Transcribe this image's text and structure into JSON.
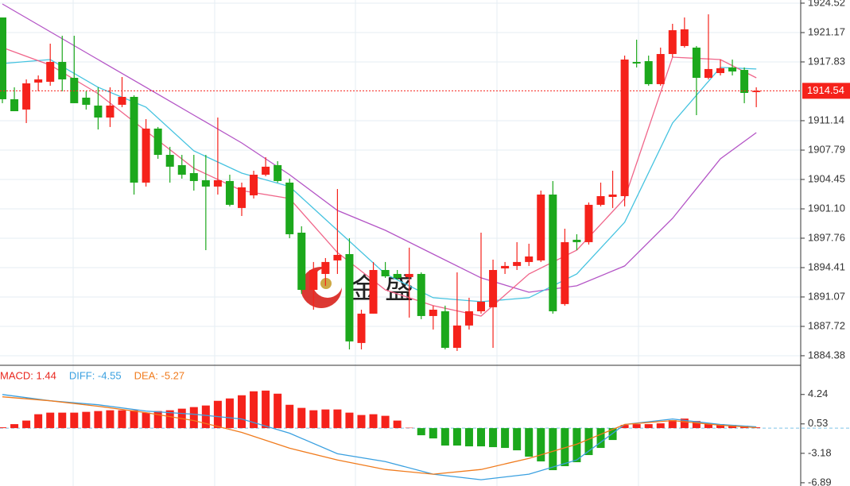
{
  "chart_data": [
    {
      "type": "candlestick",
      "ylim": [
        1883.29,
        1924.88
      ],
      "yticks": [
        1924.52,
        1921.17,
        1917.83,
        1911.14,
        1907.79,
        1904.45,
        {
          "value": 1901.1,
          "label": "1901.10"
        },
        1897.76,
        1894.41,
        1891.07,
        1887.72,
        1884.38
      ],
      "grid": true,
      "last_price": 1914.54,
      "last_price_color": "#f5221b",
      "up_color": "#f5221b",
      "down_color": "#1ca81c",
      "watermark": "金盛",
      "open": [
        1922.89,
        1913.58,
        1912.41,
        1915.48,
        1915.57,
        1917.83,
        1916.02,
        1913.76,
        1912.86,
        1911.5,
        1912.95,
        1913.85,
        1904.09,
        1910.24,
        1907.25,
        1906.08,
        1905.17,
        1904.36,
        1903.64,
        1904.27,
        1901.2,
        1902.64,
        1904.99,
        1906.08,
        1904.09,
        1898.39,
        1891.88,
        1893.69,
        1895.23,
        1895.95,
        1885.83,
        1889.17,
        1894.14,
        1893.69,
        1893.33,
        1893.69,
        1888.9,
        1889.44,
        1885.28,
        1887.82,
        1889.44,
        1889.9,
        1894.32,
        1894.6,
        1895.05,
        1895.23,
        1902.73,
        1890.26,
        1897.58,
        1897.31,
        1901.56,
        1902.46,
        1902.55,
        1917.83,
        1917.92,
        1915.3,
        1918.73,
        1919.64,
        1919.46,
        1916.02,
        1916.56,
        1917.2,
        1916.92,
        1914.39
      ],
      "high": [
        1922.89,
        1914.94,
        1915.84,
        1916.29,
        1919.91,
        1920.81,
        1920.81,
        1914.48,
        1914.94,
        1914.94,
        1916.11,
        1914.03,
        1911.32,
        1910.42,
        1908.16,
        1907.25,
        1907.25,
        1907.25,
        1911.5,
        1904.99,
        1904.09,
        1905.44,
        1906.98,
        1906.53,
        1904.54,
        1899.12,
        1895.05,
        1895.5,
        1903.36,
        1897.76,
        1889.62,
        1895.05,
        1895.05,
        1894.14,
        1896.68,
        1893.87,
        1890.08,
        1890.08,
        1893.87,
        1890.98,
        1898.39,
        1895.32,
        1895.05,
        1897.31,
        1897.13,
        1903.18,
        1904.27,
        1898.84,
        1898.21,
        1901.83,
        1904.09,
        1905.44,
        1918.55,
        1920.36,
        1918.55,
        1919.46,
        1922.17,
        1922.89,
        1919.64,
        1923.25,
        1918.1,
        1918.1,
        1917.2,
        1914.94
      ],
      "low": [
        1913.13,
        1912.22,
        1910.87,
        1914.48,
        1915.12,
        1914.48,
        1913.13,
        1912.41,
        1910.14,
        1910.42,
        1912.68,
        1902.73,
        1903.64,
        1906.8,
        1904.09,
        1904.54,
        1903.18,
        1896.4,
        1902.73,
        1901.38,
        1900.29,
        1902.28,
        1904.81,
        1904.09,
        1897.76,
        1891.43,
        1889.62,
        1892.34,
        1893.69,
        1885.1,
        1885.1,
        1889.17,
        1893.24,
        1893.06,
        1888.72,
        1888.54,
        1887.36,
        1885.1,
        1884.92,
        1887.36,
        1889.17,
        1885.28,
        1893.69,
        1894.14,
        1894.6,
        1895.05,
        1889.17,
        1890.08,
        1896.4,
        1897.04,
        1901.38,
        1901.2,
        1901.38,
        1917.2,
        1915.12,
        1915.12,
        1918.37,
        1919.46,
        1911.77,
        1915.84,
        1916.29,
        1916.29,
        1913.13,
        1912.68
      ],
      "close": [
        1913.58,
        1912.22,
        1915.39,
        1915.84,
        1917.83,
        1915.84,
        1913.13,
        1912.95,
        1911.5,
        1912.86,
        1913.85,
        1904.09,
        1910.24,
        1907.25,
        1905.9,
        1904.99,
        1904.27,
        1903.64,
        1904.36,
        1901.56,
        1903.55,
        1904.99,
        1905.9,
        1904.27,
        1898.21,
        1891.88,
        1894.14,
        1895.05,
        1895.86,
        1886.01,
        1889.17,
        1894.14,
        1893.42,
        1893.24,
        1893.69,
        1888.9,
        1889.62,
        1885.28,
        1887.82,
        1889.44,
        1890.53,
        1894.14,
        1894.6,
        1895.05,
        1895.68,
        1902.73,
        1889.44,
        1897.31,
        1897.31,
        1901.56,
        1902.55,
        1902.73,
        1918.1,
        1917.65,
        1915.3,
        1918.73,
        1921.44,
        1921.54,
        1916.02,
        1917.02,
        1917.11,
        1916.74,
        1914.3,
        1914.54
      ],
      "lines": [
        {
          "color": "#b455c6",
          "x": [
            0,
            4,
            8,
            12,
            16,
            20,
            24,
            28,
            32,
            36,
            40,
            44,
            48,
            52,
            56,
            60,
            63
          ],
          "values": [
            1924.43,
            1921.26,
            1918.1,
            1914.94,
            1911.77,
            1908.61,
            1904.99,
            1900.92,
            1898.66,
            1895.95,
            1893.24,
            1891.61,
            1892.34,
            1894.6,
            1900.02,
            1906.8,
            1909.78
          ]
        },
        {
          "color": "#45c3e0",
          "x": [
            0,
            4,
            8,
            12,
            16,
            20,
            24,
            28,
            32,
            36,
            40,
            44,
            48,
            52,
            56,
            60,
            63
          ],
          "values": [
            1917.65,
            1918.1,
            1914.94,
            1912.68,
            1907.7,
            1905.17,
            1903.64,
            1898.66,
            1893.69,
            1890.98,
            1890.53,
            1890.98,
            1893.69,
            1899.57,
            1910.87,
            1917.2,
            1917.02
          ]
        },
        {
          "color": "#f0668a",
          "x": [
            0,
            4,
            8,
            12,
            16,
            20,
            24,
            28,
            32,
            36,
            40,
            44,
            48,
            52,
            56,
            60,
            63
          ],
          "values": [
            1919.46,
            1917.47,
            1914.21,
            1909.96,
            1905.72,
            1903.18,
            1902.28,
            1896.13,
            1891.88,
            1890.08,
            1888.9,
            1893.69,
            1896.4,
            1902.28,
            1918.37,
            1918.1,
            1916.02
          ]
        }
      ]
    },
    {
      "type": "macd",
      "legend": [
        {
          "label": "MACD: 1.44",
          "color": "#e8261d"
        },
        {
          "label": "DIFF: -4.55",
          "color": "#3aa0e0"
        },
        {
          "label": "DEA: -5.27",
          "color": "#f07b1d"
        }
      ],
      "ylim": [
        -7.3,
        7.72
      ],
      "yticks": [
        4.24,
        0.53,
        -3.18,
        -6.89
      ],
      "up_color": "#f5221b",
      "down_color": "#1ca81c",
      "histogram": [
        0.1,
        0.5,
        0.95,
        1.75,
        1.95,
        1.95,
        1.95,
        2.05,
        2.15,
        2.25,
        2.25,
        2.25,
        1.95,
        2.15,
        2.25,
        2.45,
        2.65,
        2.85,
        3.44,
        3.74,
        4.14,
        4.64,
        4.73,
        4.34,
        2.94,
        2.55,
        2.25,
        2.35,
        2.35,
        1.95,
        1.65,
        1.75,
        1.55,
        0.95,
        0.05,
        -0.9,
        -1.3,
        -2.2,
        -2.2,
        -2.3,
        -2.3,
        -2.4,
        -2.5,
        -2.8,
        -3.6,
        -4.2,
        -5.3,
        -4.8,
        -4.3,
        -3.4,
        -2.5,
        -1.5,
        0.4,
        0.5,
        0.5,
        0.6,
        1.0,
        1.2,
        0.9,
        0.6,
        0.5,
        0.4,
        0.3,
        0.1
      ],
      "lines": [
        {
          "color": "#3aa0e0",
          "x": [
            0,
            4,
            8,
            12,
            16,
            20,
            24,
            28,
            32,
            36,
            40,
            44,
            48,
            52,
            56,
            60,
            63
          ],
          "values": [
            4.24,
            3.44,
            2.94,
            2.15,
            1.75,
            1.15,
            -0.64,
            -3.23,
            -4.22,
            -5.81,
            -6.51,
            -5.81,
            -4.02,
            0.46,
            1.15,
            0.46,
            0.16
          ]
        },
        {
          "color": "#f07b1d",
          "x": [
            0,
            4,
            8,
            12,
            16,
            20,
            24,
            28,
            32,
            36,
            40,
            44,
            48,
            52,
            56,
            60,
            63
          ],
          "values": [
            3.94,
            3.44,
            2.75,
            1.95,
            0.95,
            -0.54,
            -2.53,
            -4.02,
            -5.22,
            -5.81,
            -5.22,
            -3.82,
            -2.03,
            0.46,
            0.95,
            0.36,
            0.06
          ]
        }
      ]
    }
  ]
}
